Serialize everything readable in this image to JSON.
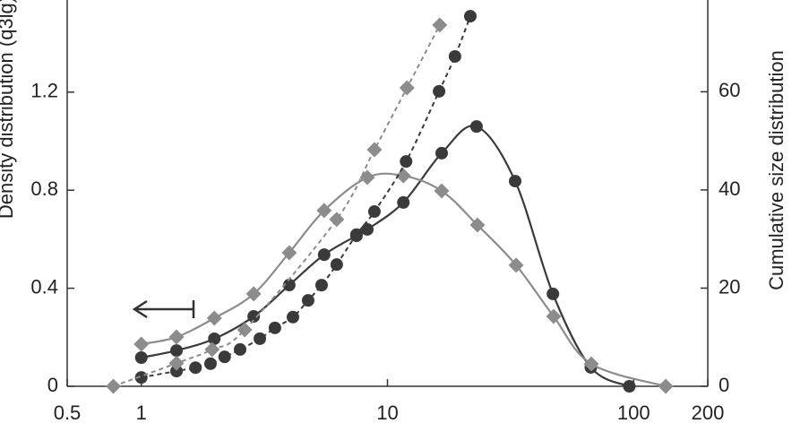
{
  "chart_data": {
    "type": "scatter",
    "y_label": "Density distribution (q3lg)",
    "y2_label": "Cumulative size distribution",
    "xlim": [
      0.5,
      200
    ],
    "xticks": [
      0.5,
      1,
      10,
      100,
      200
    ],
    "log_x": true,
    "ylim": [
      0,
      1.576
    ],
    "yticks": [
      0,
      0.4,
      0.8,
      1.2
    ],
    "y2lim": [
      0,
      78.7
    ],
    "y2ticks": [
      0,
      20,
      40,
      60
    ],
    "series": [
      {
        "color": "#3a3a3a",
        "marker": "circle",
        "dash": false,
        "axis": "y",
        "x": [
          1.0,
          1.39,
          1.98,
          2.86,
          3.99,
          5.53,
          7.48,
          8.28,
          11.6,
          16.6,
          23,
          33,
          47,
          67,
          96
        ],
        "values": [
          0.117,
          0.146,
          0.194,
          0.285,
          0.413,
          0.537,
          0.614,
          0.64,
          0.75,
          0.951,
          1.06,
          0.837,
          0.377,
          0.077,
          0
        ]
      },
      {
        "color": "#8c8c8c",
        "marker": "diamond",
        "dash": false,
        "axis": "y",
        "x": [
          1.0,
          1.39,
          1.98,
          2.86,
          3.99,
          5.53,
          8.28,
          11.6,
          16.6,
          23.2,
          33.3,
          47.3,
          67.3,
          135
        ],
        "values": [
          0.172,
          0.201,
          0.278,
          0.377,
          0.545,
          0.717,
          0.852,
          0.859,
          0.797,
          0.658,
          0.494,
          0.285,
          0.091,
          0
        ]
      },
      {
        "color": "#3a3a3a",
        "marker": "circle",
        "dash": true,
        "axis": "y2",
        "x": [
          1.0,
          1.39,
          1.66,
          1.91,
          2.18,
          2.52,
          3.03,
          3.49,
          4.13,
          4.76,
          5.4,
          6.22,
          7.48,
          8.85,
          11.9,
          16.2,
          18.8,
          21.7
        ],
        "values": [
          1.8,
          3.1,
          3.8,
          4.6,
          6.0,
          7.5,
          9.7,
          11.9,
          14.1,
          17.5,
          20.6,
          24.8,
          30.9,
          35.6,
          45.8,
          60.1,
          67.2,
          75.4
        ]
      },
      {
        "color": "#8c8c8c",
        "marker": "diamond",
        "dash": true,
        "axis": "y2",
        "x": [
          0.77,
          1.39,
          1.94,
          2.63,
          6.22,
          8.85,
          12.0,
          16.3
        ],
        "values": [
          0,
          4.7,
          7.5,
          11.5,
          34,
          48.2,
          60.8,
          73.6
        ]
      }
    ]
  }
}
